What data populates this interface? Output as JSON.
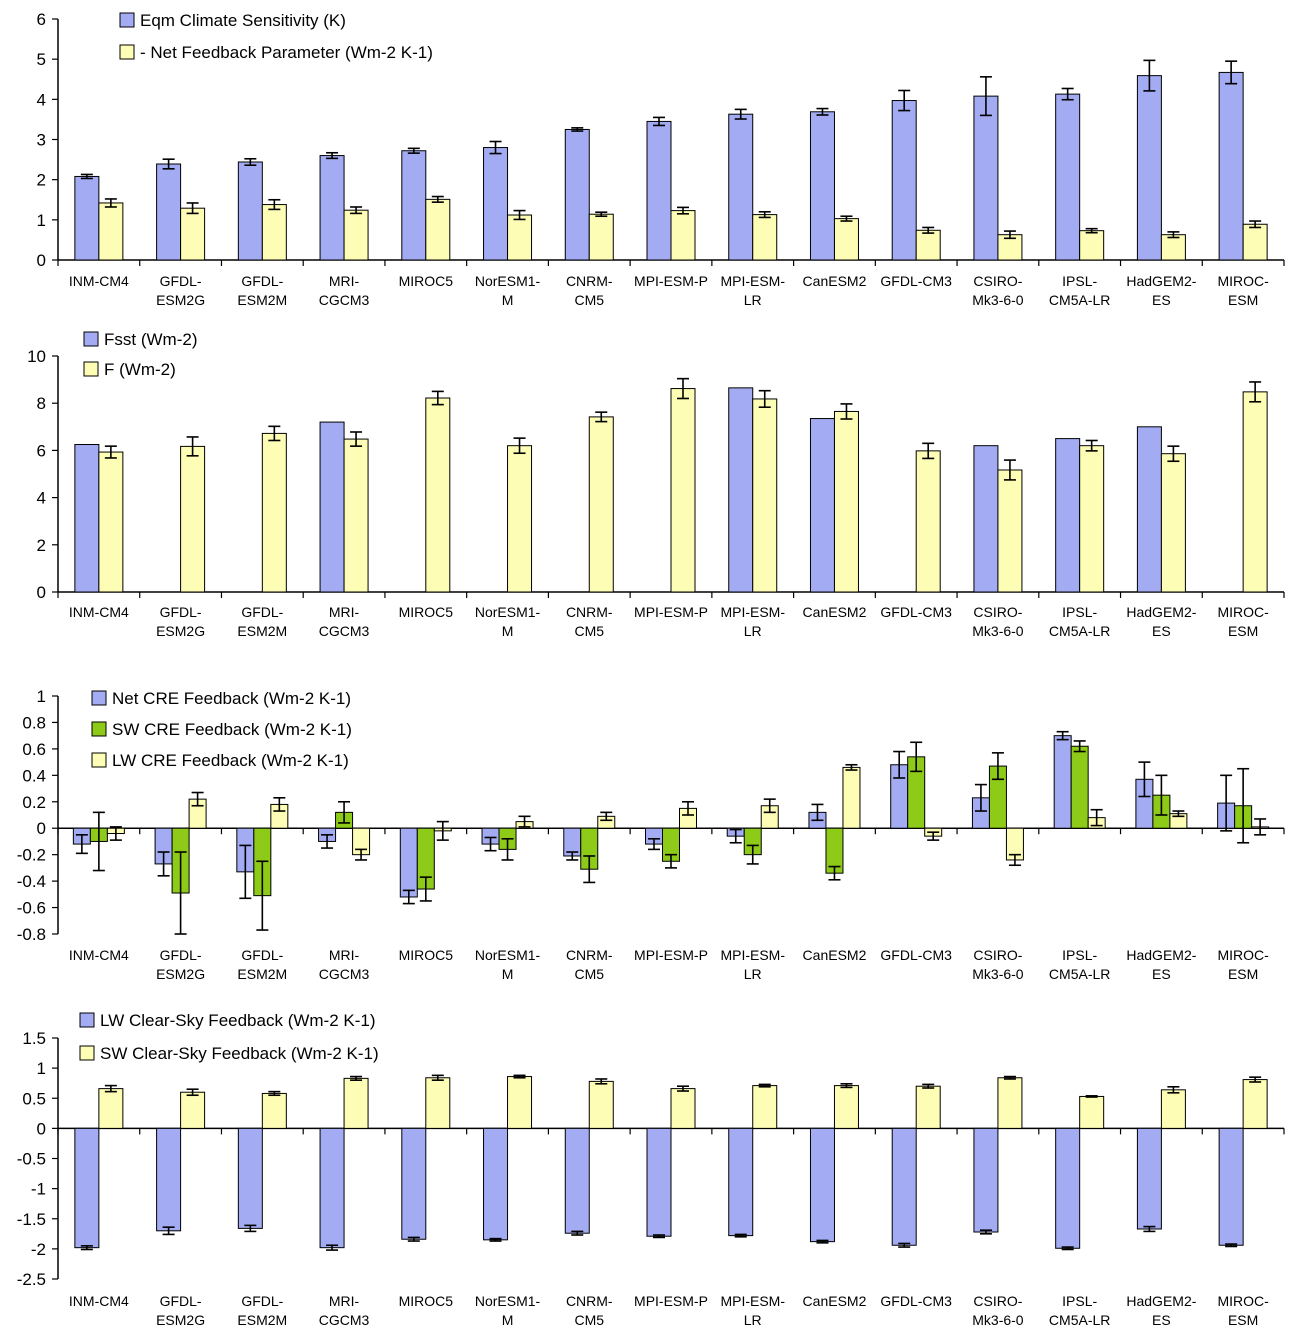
{
  "models": [
    [
      "INM-CM4"
    ],
    [
      "GFDL-",
      "ESM2G"
    ],
    [
      "GFDL-",
      "ESM2M"
    ],
    [
      "MRI-",
      "CGCM3"
    ],
    [
      "MIROC5"
    ],
    [
      "NorESM1-",
      "M"
    ],
    [
      "CNRM-",
      "CM5"
    ],
    [
      "MPI-ESM-P"
    ],
    [
      "MPI-ESM-",
      "LR"
    ],
    [
      "CanESM2"
    ],
    [
      "GFDL-CM3"
    ],
    [
      "CSIRO-",
      "Mk3-6-0"
    ],
    [
      "IPSL-",
      "CM5A-LR"
    ],
    [
      "HadGEM2-",
      "ES"
    ],
    [
      "MIROC-",
      "ESM"
    ]
  ],
  "colors": {
    "blue": "#a3acf3",
    "yellow": "#fdfdb5",
    "green": "#8ecb19",
    "axis": "#000000"
  },
  "chart_data": [
    {
      "type": "bar",
      "ylim": [
        0,
        6
      ],
      "yticks": [
        0,
        1,
        2,
        3,
        4,
        5,
        6
      ],
      "legend_position": "top-left",
      "series": [
        {
          "name": "Eqm Climate Sensitivity (K)",
          "color": "blue",
          "values": [
            2.08,
            2.39,
            2.44,
            2.6,
            2.72,
            2.8,
            3.25,
            3.45,
            3.63,
            3.69,
            3.97,
            4.08,
            4.13,
            4.59,
            4.67
          ],
          "errors": [
            0.05,
            0.12,
            0.08,
            0.07,
            0.06,
            0.15,
            0.04,
            0.1,
            0.12,
            0.08,
            0.25,
            0.48,
            0.14,
            0.38,
            0.28
          ]
        },
        {
          "name": "- Net Feedback Parameter (Wm-2 K-1)",
          "color": "yellow",
          "values": [
            1.42,
            1.29,
            1.38,
            1.24,
            1.51,
            1.12,
            1.14,
            1.23,
            1.13,
            1.03,
            0.74,
            0.63,
            0.73,
            0.63,
            0.89
          ],
          "errors": [
            0.1,
            0.13,
            0.12,
            0.08,
            0.07,
            0.11,
            0.05,
            0.08,
            0.07,
            0.06,
            0.07,
            0.09,
            0.05,
            0.07,
            0.08
          ]
        }
      ]
    },
    {
      "type": "bar",
      "ylim": [
        0,
        10
      ],
      "yticks": [
        0,
        2,
        4,
        6,
        8,
        10
      ],
      "legend_position": "top-left",
      "series": [
        {
          "name": "Fsst (Wm-2)",
          "color": "blue",
          "values": [
            6.25,
            null,
            null,
            7.2,
            null,
            null,
            null,
            null,
            8.65,
            7.35,
            null,
            6.2,
            6.5,
            7.0,
            null
          ],
          "errors": null
        },
        {
          "name": "F (Wm-2)",
          "color": "yellow",
          "values": [
            5.93,
            6.17,
            6.72,
            6.48,
            8.22,
            6.2,
            7.42,
            8.62,
            8.18,
            7.65,
            5.98,
            5.17,
            6.2,
            5.86,
            8.48
          ],
          "errors": [
            0.25,
            0.4,
            0.3,
            0.3,
            0.28,
            0.32,
            0.2,
            0.42,
            0.35,
            0.32,
            0.32,
            0.42,
            0.22,
            0.32,
            0.42
          ]
        }
      ]
    },
    {
      "type": "bar",
      "ylim": [
        -0.8,
        1
      ],
      "yticks": [
        -0.8,
        -0.6,
        -0.4,
        -0.2,
        0,
        0.2,
        0.4,
        0.6,
        0.8,
        1
      ],
      "legend_position": "top-left",
      "series": [
        {
          "name": "Net CRE Feedback  (Wm-2 K-1)",
          "color": "blue",
          "values": [
            -0.12,
            -0.27,
            -0.33,
            -0.1,
            -0.52,
            -0.12,
            -0.21,
            -0.12,
            -0.06,
            0.12,
            0.48,
            0.23,
            0.7,
            0.37,
            0.19
          ],
          "errors": [
            0.07,
            0.09,
            0.2,
            0.05,
            0.05,
            0.05,
            0.03,
            0.04,
            0.05,
            0.06,
            0.1,
            0.1,
            0.03,
            0.13,
            0.21
          ]
        },
        {
          "name": "SW CRE Feedback (Wm-2 K-1)",
          "color": "green",
          "values": [
            -0.1,
            -0.49,
            -0.51,
            0.12,
            -0.46,
            -0.16,
            -0.31,
            -0.25,
            -0.2,
            -0.34,
            0.54,
            0.47,
            0.62,
            0.25,
            0.17
          ],
          "errors": [
            0.22,
            0.31,
            0.26,
            0.08,
            0.09,
            0.08,
            0.1,
            0.05,
            0.07,
            0.05,
            0.11,
            0.1,
            0.04,
            0.15,
            0.28
          ]
        },
        {
          "name": "LW CRE Feedback (Wm-2 K-1)",
          "color": "yellow",
          "values": [
            -0.04,
            0.22,
            0.18,
            -0.2,
            -0.02,
            0.05,
            0.09,
            0.15,
            0.17,
            0.46,
            -0.06,
            -0.24,
            0.08,
            0.11,
            0.01
          ],
          "errors": [
            0.05,
            0.05,
            0.05,
            0.04,
            0.07,
            0.04,
            0.03,
            0.05,
            0.05,
            0.02,
            0.03,
            0.04,
            0.06,
            0.02,
            0.06
          ]
        }
      ]
    },
    {
      "type": "bar",
      "ylim": [
        -2.5,
        1.5
      ],
      "yticks": [
        -2.5,
        -2,
        -1.5,
        -1,
        -0.5,
        0,
        0.5,
        1,
        1.5
      ],
      "legend_position": "top-left",
      "series": [
        {
          "name": "LW Clear-Sky Feedback (Wm-2 K-1)",
          "color": "blue",
          "values": [
            -1.98,
            -1.7,
            -1.66,
            -1.98,
            -1.84,
            -1.85,
            -1.74,
            -1.79,
            -1.78,
            -1.88,
            -1.94,
            -1.72,
            -1.99,
            -1.67,
            -1.94
          ],
          "errors": [
            0.03,
            0.06,
            0.05,
            0.04,
            0.03,
            0.02,
            0.03,
            0.02,
            0.02,
            0.02,
            0.03,
            0.03,
            0.02,
            0.04,
            0.02
          ]
        },
        {
          "name": "SW Clear-Sky Feedback (Wm-2 K-1)",
          "color": "yellow",
          "values": [
            0.66,
            0.6,
            0.58,
            0.83,
            0.84,
            0.86,
            0.78,
            0.66,
            0.71,
            0.71,
            0.7,
            0.84,
            0.53,
            0.64,
            0.81
          ],
          "errors": [
            0.05,
            0.05,
            0.03,
            0.03,
            0.04,
            0.02,
            0.04,
            0.04,
            0.02,
            0.03,
            0.03,
            0.02,
            0.01,
            0.05,
            0.04
          ]
        }
      ]
    }
  ]
}
